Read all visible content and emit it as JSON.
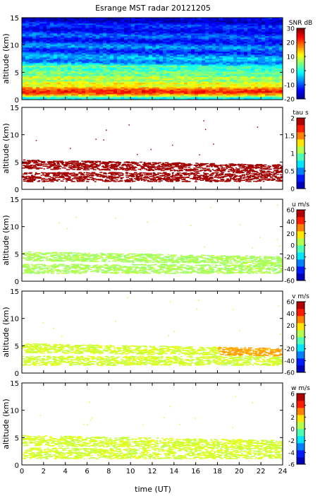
{
  "figure_title": "Esrange MST radar 20121205",
  "x_axis": {
    "label": "time (UT)",
    "range": [
      0,
      24
    ],
    "ticks": [
      0,
      2,
      4,
      6,
      8,
      10,
      12,
      14,
      16,
      18,
      20,
      22,
      24
    ],
    "tick_labels": [
      "0",
      "2",
      "4",
      "6",
      "8",
      "10",
      "12",
      "14",
      "16",
      "18",
      "20",
      "22",
      "24"
    ]
  },
  "y_axis": {
    "label": "altitude (km)",
    "range": [
      0,
      15
    ],
    "ticks": [
      0,
      5,
      10,
      15
    ],
    "tick_labels": [
      "0",
      "5",
      "10",
      "15"
    ]
  },
  "colors": {
    "jet_stops": [
      "#00008f",
      "#0000ff",
      "#0080ff",
      "#00ffff",
      "#80ff80",
      "#ffff00",
      "#ff8000",
      "#ff0000",
      "#800000"
    ]
  },
  "chart_data": [
    {
      "type": "heatmap",
      "variable": "SNR",
      "colorbar_label": "SNR dB",
      "clim": [
        -20,
        30
      ],
      "colorbar_ticks": [
        -20,
        -10,
        0,
        10,
        20,
        30
      ],
      "colorbar_tick_labels": [
        "-20",
        "-10",
        "0",
        "10",
        "20",
        "30"
      ],
      "xlim": [
        0,
        24
      ],
      "ylim": [
        0,
        15
      ],
      "profile": {
        "altitude_km": [
          0.3,
          1.0,
          1.5,
          2.0,
          2.5,
          3.0,
          3.5,
          4.0,
          4.5,
          5.0,
          5.5,
          6.0,
          6.5,
          7.0,
          8.0,
          9.0,
          10.0,
          11.0,
          12.0,
          13.0,
          14.0,
          15.0
        ],
        "snr_db": [
          -2,
          18,
          24,
          18,
          10,
          12,
          6,
          10,
          4,
          6,
          2,
          3,
          -2,
          -5,
          -8,
          -10,
          -9,
          -12,
          -11,
          -13,
          -14,
          -15
        ]
      }
    },
    {
      "type": "scatter",
      "variable": "tau",
      "colorbar_label": "tau s",
      "clim": [
        0,
        2
      ],
      "colorbar_ticks": [
        0,
        0.5,
        1,
        1.5,
        2
      ],
      "colorbar_tick_labels": [
        "0",
        "0.5",
        "1",
        "1.5",
        "2"
      ],
      "xlim": [
        0,
        24
      ],
      "ylim": [
        0,
        15
      ],
      "typical_value": 2.0,
      "layers": [
        {
          "name": "lower",
          "alt_min_km": 1.5,
          "alt_max_km": 3.2
        },
        {
          "name": "upper",
          "alt_min_km": 3.8,
          "alt_max_km": 5.5
        }
      ]
    },
    {
      "type": "scatter",
      "variable": "u",
      "colorbar_label": "u m/s",
      "clim": [
        -60,
        60
      ],
      "colorbar_ticks": [
        -60,
        -40,
        -20,
        0,
        20,
        40,
        60
      ],
      "colorbar_tick_labels": [
        "-60",
        "-40",
        "-20",
        "0",
        "20",
        "40",
        "60"
      ],
      "xlim": [
        0,
        24
      ],
      "ylim": [
        0,
        15
      ],
      "typical_value": 5,
      "layers": [
        {
          "name": "lower",
          "alt_min_km": 1.5,
          "alt_max_km": 3.2
        },
        {
          "name": "upper",
          "alt_min_km": 3.8,
          "alt_max_km": 5.5
        }
      ]
    },
    {
      "type": "scatter",
      "variable": "v",
      "colorbar_label": "v m/s",
      "clim": [
        -60,
        60
      ],
      "colorbar_ticks": [
        -60,
        -40,
        -20,
        0,
        20,
        40,
        60
      ],
      "colorbar_tick_labels": [
        "-60",
        "-40",
        "-20",
        "0",
        "20",
        "40",
        "60"
      ],
      "xlim": [
        0,
        24
      ],
      "ylim": [
        0,
        15
      ],
      "typical_value": 10,
      "late_upper_value": 25,
      "layers": [
        {
          "name": "lower",
          "alt_min_km": 1.5,
          "alt_max_km": 3.2
        },
        {
          "name": "upper",
          "alt_min_km": 3.8,
          "alt_max_km": 5.5
        }
      ]
    },
    {
      "type": "scatter",
      "variable": "w",
      "colorbar_label": "w m/s",
      "clim": [
        -6,
        6
      ],
      "colorbar_ticks": [
        -6,
        -4,
        -2,
        0,
        2,
        4,
        6
      ],
      "colorbar_tick_labels": [
        "-6",
        "-4",
        "-2",
        "0",
        "2",
        "4",
        "6"
      ],
      "xlim": [
        0,
        24
      ],
      "ylim": [
        0,
        15
      ],
      "typical_value": 1,
      "layers": [
        {
          "name": "lower",
          "alt_min_km": 1.2,
          "alt_max_km": 3.2
        },
        {
          "name": "upper",
          "alt_min_km": 3.6,
          "alt_max_km": 5.5
        }
      ]
    }
  ]
}
